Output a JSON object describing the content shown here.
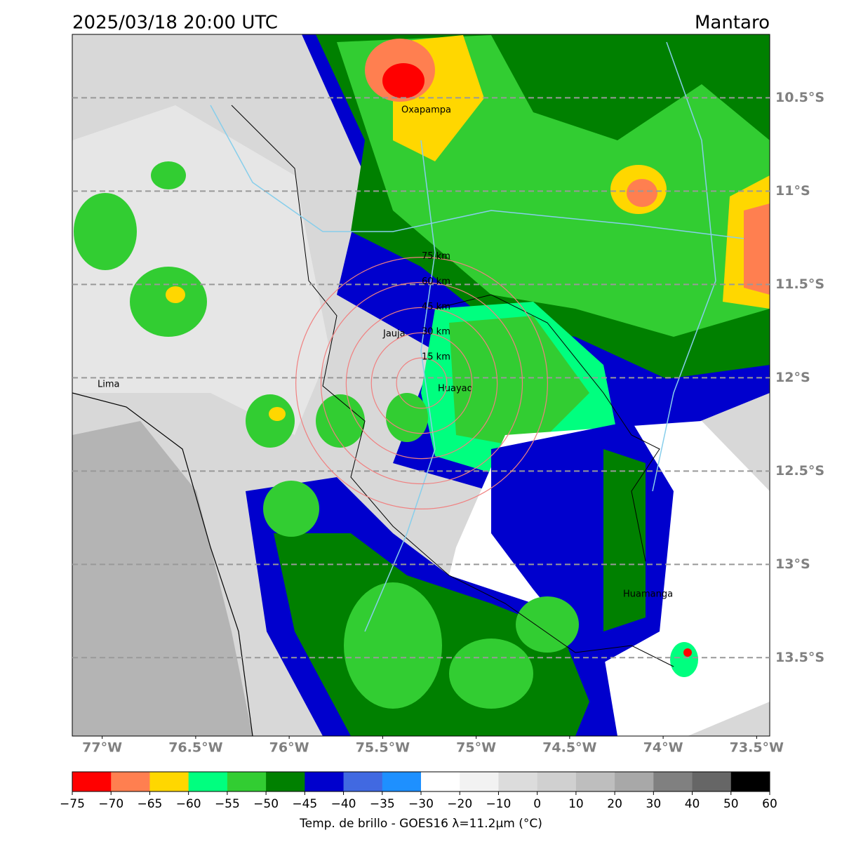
{
  "header": {
    "title_left": "2025/03/18 20:00 UTC",
    "title_right": "Mantaro"
  },
  "map": {
    "lon_lim": [
      -77.16,
      -73.43
    ],
    "lat_lim": [
      -13.92,
      -10.16
    ],
    "lat_ticks": [
      {
        "value": -10.5,
        "label": "10.5°S"
      },
      {
        "value": -11,
        "label": "11°S"
      },
      {
        "value": -11.5,
        "label": "11.5°S"
      },
      {
        "value": -12,
        "label": "12°S"
      },
      {
        "value": -12.5,
        "label": "12.5°S"
      },
      {
        "value": -13,
        "label": "13°S"
      },
      {
        "value": -13.5,
        "label": "13.5°S"
      }
    ],
    "lon_ticks": [
      {
        "value": -77,
        "label": "77°W"
      },
      {
        "value": -76.5,
        "label": "76.5°W"
      },
      {
        "value": -76,
        "label": "76°W"
      },
      {
        "value": -75.5,
        "label": "75.5°W"
      },
      {
        "value": -75,
        "label": "75°W"
      },
      {
        "value": -74.5,
        "label": "74.5°W"
      },
      {
        "value": -74,
        "label": "74°W"
      },
      {
        "value": -73.5,
        "label": "73.5°W"
      }
    ],
    "places": [
      "Oxapampa",
      "Jauja",
      "Huayao",
      "Lima",
      "Huamanga"
    ],
    "rings": [
      {
        "value": 15,
        "label": "15 km"
      },
      {
        "value": 30,
        "label": "30 km"
      },
      {
        "value": 45,
        "label": "45 km"
      },
      {
        "value": 60,
        "label": "60 km"
      },
      {
        "value": 75,
        "label": "75 km"
      }
    ]
  },
  "colorbar": {
    "ticks": [
      {
        "value": -75,
        "label": "−75"
      },
      {
        "value": -70,
        "label": "−70"
      },
      {
        "value": -65,
        "label": "−65"
      },
      {
        "value": -60,
        "label": "−60"
      },
      {
        "value": -55,
        "label": "−55"
      },
      {
        "value": -50,
        "label": "−50"
      },
      {
        "value": -45,
        "label": "−45"
      },
      {
        "value": -40,
        "label": "−40"
      },
      {
        "value": -35,
        "label": "−35"
      },
      {
        "value": -30,
        "label": "−30"
      },
      {
        "value": -20,
        "label": "−20"
      },
      {
        "value": -10,
        "label": "−10"
      },
      0,
      10,
      20,
      30,
      40,
      50,
      60
    ],
    "colors": [
      "#ff0000",
      "#ff7f50",
      "#ffd700",
      "#00ff7f",
      "#32cd32",
      "#008000",
      "#0000cd",
      "#4169e1",
      "#1e90ff",
      "#ffffff",
      "#f2f2f2",
      "#dcdcdc",
      "#d0d0d0",
      "#bebebe",
      "#a8a8a8",
      "#808080",
      "#666666",
      "#000000"
    ],
    "label": "Temp. de brillo - GOES16 λ=11.2μm (°C)"
  }
}
